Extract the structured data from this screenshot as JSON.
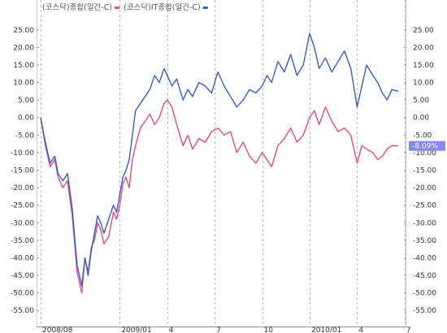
{
  "chart_data": {
    "type": "line",
    "ylim": [
      -57.5,
      27.5
    ],
    "yticks": [
      25.0,
      20.0,
      15.0,
      10.0,
      5.0,
      0.0,
      -5.0,
      -10.0,
      -15.0,
      -20.0,
      -25.0,
      -30.0,
      -35.0,
      -40.0,
      -45.0,
      -50.0,
      -55.0
    ],
    "y_tick_labels_left": [
      "25.00",
      "20.00",
      "15.00",
      "10.00",
      "5.00",
      "0.00",
      "-5.00",
      "-10.00",
      "-15.00",
      "-20.00",
      "-25.00",
      "-30.00",
      "-35.00",
      "-40.00",
      "-45.00",
      "-50.00",
      "-55.00"
    ],
    "y_tick_labels_right": [
      "25.00",
      "20.00",
      "15.00",
      "10.00",
      "5.00",
      "0.00",
      "-5.00",
      "-10.00",
      "-15.00",
      "-20.00",
      "-25.00",
      "-30.00",
      "-35.00",
      "-40.00",
      "-45.00",
      "-50.00",
      "-55.00"
    ],
    "xlim": [
      0,
      22.6
    ],
    "x_ticks": [
      {
        "label": "2008/08",
        "x": 0
      },
      {
        "label": "2009/01",
        "x": 5
      },
      {
        "label": "4",
        "x": 8
      },
      {
        "label": "7",
        "x": 11
      },
      {
        "label": "10",
        "x": 14
      },
      {
        "label": "2010/01",
        "x": 17
      },
      {
        "label": "4",
        "x": 20
      },
      {
        "label": "7",
        "x": 23
      }
    ],
    "grid": "vertical dashed at month ticks",
    "legend": {
      "position": "top-left",
      "entries": [
        {
          "name": "(코스닥)종합(일간-C)",
          "color": "#e04a85"
        },
        {
          "name": "(코스닥)IT종합(일간-C)",
          "color": "#3a5bc8"
        }
      ]
    },
    "badge": {
      "text": "-8.09%",
      "value": -8.09,
      "color": "#8888ee"
    },
    "series": [
      {
        "name": "(코스닥)종합(일간-C)",
        "color": "#e04a85",
        "x": [
          0,
          0.3,
          0.6,
          0.9,
          1.1,
          1.4,
          1.7,
          2.0,
          2.3,
          2.6,
          2.8,
          3.0,
          3.2,
          3.4,
          3.6,
          3.8,
          4.0,
          4.3,
          4.6,
          4.8,
          5.0,
          5.2,
          5.4,
          5.6,
          5.8,
          6.0,
          6.3,
          6.6,
          6.9,
          7.2,
          7.5,
          7.8,
          8.0,
          8.3,
          8.6,
          9.0,
          9.3,
          9.6,
          10.0,
          10.4,
          10.8,
          11.2,
          11.6,
          12.0,
          12.4,
          12.8,
          13.2,
          13.6,
          14.0,
          14.3,
          14.6,
          15.0,
          15.4,
          15.8,
          16.2,
          16.6,
          17.0,
          17.3,
          17.6,
          18.0,
          18.4,
          18.8,
          19.2,
          19.6,
          20.0,
          20.3,
          20.6,
          21.0,
          21.3,
          21.6,
          21.9,
          22.2,
          22.6
        ],
        "values": [
          0,
          -8,
          -14,
          -12,
          -17,
          -20,
          -18,
          -28,
          -44,
          -50,
          -40,
          -44,
          -37,
          -35,
          -30,
          -32,
          -36,
          -34,
          -27,
          -29,
          -25,
          -19,
          -17,
          -20,
          -12,
          -8,
          -3,
          -1,
          1,
          -2,
          0,
          4,
          5,
          3,
          -2,
          -8,
          -5,
          -9,
          -6,
          -7,
          -4,
          -3,
          -5,
          -4,
          -10,
          -7,
          -11,
          -13,
          -10,
          -12,
          -14,
          -8,
          -6,
          -3,
          -7,
          -5,
          0,
          2,
          -2,
          3,
          -1,
          -4,
          -3,
          -5,
          -13,
          -8,
          -9,
          -10,
          -12,
          -11,
          -9,
          -8,
          -8.09
        ]
      },
      {
        "name": "(코스닥)IT종합(일간-C)",
        "color": "#3a5bc8",
        "x": [
          0,
          0.3,
          0.6,
          0.9,
          1.1,
          1.4,
          1.7,
          2.0,
          2.3,
          2.6,
          2.8,
          3.0,
          3.2,
          3.4,
          3.6,
          3.8,
          4.0,
          4.3,
          4.6,
          4.8,
          5.0,
          5.2,
          5.4,
          5.6,
          5.8,
          6.0,
          6.3,
          6.6,
          6.9,
          7.2,
          7.5,
          7.8,
          8.0,
          8.3,
          8.6,
          9.0,
          9.3,
          9.6,
          10.0,
          10.4,
          10.8,
          11.2,
          11.6,
          12.0,
          12.4,
          12.8,
          13.2,
          13.6,
          14.0,
          14.3,
          14.6,
          15.0,
          15.4,
          15.8,
          16.2,
          16.6,
          17.0,
          17.3,
          17.6,
          18.0,
          18.4,
          18.8,
          19.2,
          19.6,
          20.0,
          20.3,
          20.6,
          21.0,
          21.3,
          21.6,
          21.9,
          22.2,
          22.6
        ],
        "values": [
          0,
          -7,
          -13,
          -11,
          -16,
          -18,
          -16,
          -26,
          -42,
          -48,
          -40,
          -45,
          -38,
          -33,
          -28,
          -30,
          -33,
          -29,
          -25,
          -27,
          -22,
          -17,
          -15,
          -12,
          -5,
          2,
          4,
          6,
          8,
          12,
          10,
          14,
          12,
          9,
          11,
          5,
          8,
          6,
          10,
          9,
          7,
          13,
          9,
          6,
          3,
          5,
          8,
          7,
          9,
          12,
          10,
          16,
          13,
          18,
          12,
          15,
          24,
          20,
          14,
          17,
          13,
          16,
          19,
          14,
          3,
          9,
          15,
          12,
          10,
          7,
          5,
          8,
          7.5
        ]
      }
    ]
  }
}
